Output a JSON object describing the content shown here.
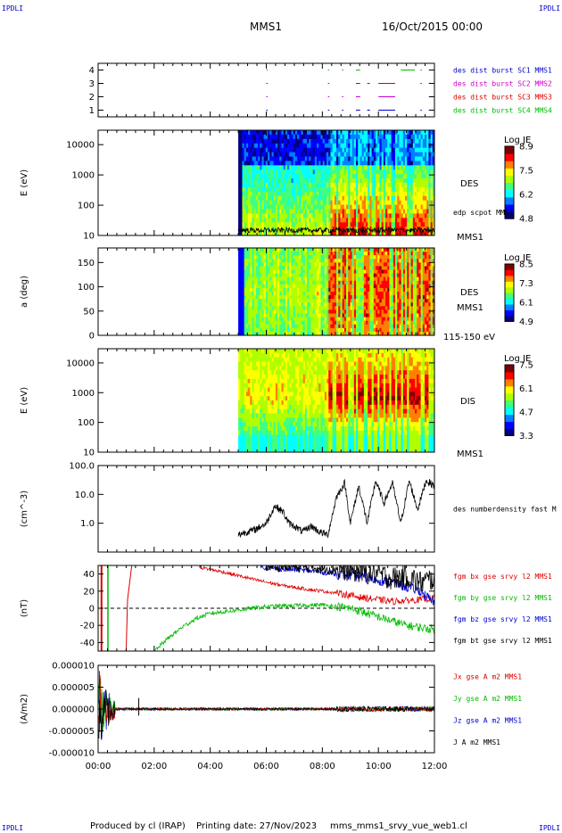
{
  "header": {
    "corner_tl": "IPDLI",
    "corner_tr": "IPDLI",
    "corner_bl": "IPDLI",
    "corner_br": "IPDLI",
    "title": "MMS1",
    "date": "16/Oct/2015 00:00"
  },
  "footer": {
    "produced": "Produced by cl (IRAP)",
    "printing": "Printing date: 27/Nov/2023",
    "file": "mms_mms1_srvy_vue_web1.cl"
  },
  "colors": {
    "blue": "#0000cc",
    "magenta": "#cc00cc",
    "red": "#dd0000",
    "green": "#00bb00",
    "black": "#000000"
  },
  "colormap": [
    "#00007f",
    "#0000ff",
    "#0080ff",
    "#00ffff",
    "#40ff80",
    "#b0ff00",
    "#ffff00",
    "#ff8000",
    "#ff0000",
    "#7f0000"
  ],
  "time_axis": {
    "ticks": [
      "00:00",
      "02:00",
      "04:00",
      "06:00",
      "08:00",
      "10:00",
      "12:00"
    ],
    "hours": [
      0,
      2,
      4,
      6,
      8,
      10,
      12
    ],
    "range_hours": [
      0,
      12
    ]
  },
  "chart_data": [
    {
      "type": "scatter",
      "name": "burst",
      "ylim": [
        0.5,
        4.5
      ],
      "yticks": [
        "4",
        "3",
        "2",
        "1"
      ],
      "ytick_values": [
        4,
        3,
        2,
        1
      ],
      "legend": [
        {
          "text": "des dist burst SC1 MMS1",
          "color": "#0000cc"
        },
        {
          "text": "des dist burst SC2 MMS2",
          "color": "#cc00cc"
        },
        {
          "text": "des dist burst SC3 MMS3",
          "color": "#dd0000"
        },
        {
          "text": "des dist burst SC4 MMS4",
          "color": "#00bb00"
        }
      ],
      "segments_hours": [
        [
          6.0,
          6.05
        ],
        [
          8.2,
          8.25
        ],
        [
          8.7,
          8.75
        ],
        [
          9.2,
          9.35
        ],
        [
          9.6,
          9.7
        ],
        [
          10.0,
          10.6
        ],
        [
          10.8,
          11.3
        ],
        [
          11.5,
          11.55
        ],
        [
          11.8,
          11.85
        ]
      ],
      "series_rows": [
        1,
        2,
        3,
        4
      ]
    },
    {
      "type": "heatmap",
      "name": "des-energy",
      "ylabel": "E (eV)",
      "yscale": "log",
      "ylim": [
        10,
        30000
      ],
      "yticks": [
        "10000",
        "1000",
        "100",
        "10"
      ],
      "ytick_values": [
        10000,
        1000,
        100,
        10
      ],
      "data_start_hour": 5.0,
      "right_label": "DES",
      "right_label2": "MMS1",
      "overlay_label": "edp scpot MMS1",
      "colorbar": {
        "title": "Log JE",
        "min": 4.8,
        "max": 8.9,
        "ticks": [
          "8.9",
          "7.5",
          "6.2",
          "4.8"
        ]
      }
    },
    {
      "type": "heatmap",
      "name": "des-pitch",
      "ylabel": "a (deg)",
      "ylim": [
        0,
        180
      ],
      "yticks": [
        "150",
        "100",
        "50",
        "0"
      ],
      "ytick_values": [
        150,
        100,
        50,
        0
      ],
      "data_start_hour": 5.0,
      "right_label": "DES",
      "right_label2": "MMS1",
      "right_label3": "115-150 eV",
      "colorbar": {
        "title": "Log JE",
        "min": 4.9,
        "max": 8.5,
        "ticks": [
          "8.5",
          "7.3",
          "6.1",
          "4.9"
        ]
      }
    },
    {
      "type": "heatmap",
      "name": "dis-energy",
      "ylabel": "E (eV)",
      "yscale": "log",
      "ylim": [
        10,
        30000
      ],
      "yticks": [
        "10000",
        "1000",
        "100",
        "10"
      ],
      "ytick_values": [
        10000,
        1000,
        100,
        10
      ],
      "data_start_hour": 5.0,
      "right_label": "DIS",
      "right_label2": "MMS1",
      "colorbar": {
        "title": "Log JE",
        "min": 3.3,
        "max": 7.5,
        "ticks": [
          "7.5",
          "6.1",
          "4.7",
          "3.3"
        ]
      }
    },
    {
      "type": "line",
      "name": "density",
      "ylabel": "(cm^-3)",
      "yscale": "log",
      "ylim": [
        0.1,
        100
      ],
      "yticks": [
        "100.0",
        "10.0",
        "1.0"
      ],
      "ytick_values": [
        100,
        10,
        1
      ],
      "legend": [
        {
          "text": "des numberdensity fast M",
          "color": "#000000"
        }
      ],
      "series": [
        {
          "x": [
            5.0,
            5.3,
            5.6,
            6.0,
            6.3,
            6.6,
            6.8,
            7.0,
            7.3,
            7.6,
            7.9,
            8.2,
            8.5,
            8.8,
            9.0,
            9.3,
            9.6,
            9.9,
            10.2,
            10.5,
            10.8,
            11.1,
            11.4,
            11.7,
            12.0
          ],
          "y": [
            0.4,
            0.5,
            0.6,
            1.0,
            4.0,
            2.5,
            1.0,
            0.8,
            0.5,
            0.8,
            0.5,
            0.4,
            8.0,
            25.0,
            1.0,
            20.0,
            1.0,
            30.0,
            5.0,
            25.0,
            1.0,
            30.0,
            3.0,
            30.0,
            20.0
          ]
        }
      ]
    },
    {
      "type": "line",
      "name": "magnetic-field",
      "ylabel": "(nT)",
      "ylim": [
        -50,
        50
      ],
      "yticks": [
        "40",
        "20",
        "0",
        "-20",
        "-40"
      ],
      "ytick_values": [
        40,
        20,
        0,
        -20,
        -40
      ],
      "zero_line": true,
      "legend": [
        {
          "text": "fgm bx gse srvy l2 MMS1",
          "color": "#dd0000"
        },
        {
          "text": "fgm by gse srvy l2 MMS1",
          "color": "#00bb00"
        },
        {
          "text": "fgm bz gse srvy l2 MMS1",
          "color": "#0000cc"
        },
        {
          "text": "fgm bt gse srvy l2 MMS1",
          "color": "#000000"
        }
      ],
      "series": [
        {
          "key": "bx",
          "x": [
            3.6,
            4.5,
            5.5,
            6.5,
            7.5,
            8.5,
            9.5,
            10.5,
            11.5,
            12.0
          ],
          "y": [
            48,
            42,
            34,
            27,
            22,
            18,
            12,
            8,
            10,
            12
          ]
        },
        {
          "key": "by",
          "x": [
            2.0,
            2.5,
            3.0,
            3.5,
            4.0,
            5.0,
            6.0,
            7.0,
            8.0,
            9.0,
            10.0,
            11.0,
            12.0
          ],
          "y": [
            -50,
            -35,
            -22,
            -12,
            -6,
            -2,
            2,
            3,
            4,
            0,
            -10,
            -20,
            -25
          ]
        },
        {
          "key": "bz",
          "x": [
            5.8,
            6.5,
            7.5,
            8.5,
            9.5,
            10.5,
            11.5,
            12.0
          ],
          "y": [
            48,
            46,
            44,
            40,
            36,
            30,
            20,
            5
          ]
        },
        {
          "key": "bt",
          "x": [
            6.0,
            7.0,
            8.0,
            9.0,
            9.5,
            10.0,
            10.5,
            11.0,
            11.5,
            12.0
          ],
          "y": [
            50,
            49,
            47,
            45,
            42,
            40,
            35,
            38,
            30,
            35
          ]
        }
      ]
    },
    {
      "type": "line",
      "name": "current-density",
      "ylabel": "(A/m2)",
      "ylim": [
        -1e-05,
        1e-05
      ],
      "yticks": [
        "0.000010",
        "0.000005",
        "0.000000",
        "-0.000005",
        "-0.000010"
      ],
      "ytick_values": [
        1e-05,
        5e-06,
        0,
        -5e-06,
        -1e-05
      ],
      "legend": [
        {
          "text": "Jx gse A m2 MMS1",
          "color": "#dd0000"
        },
        {
          "text": "Jy gse A m2 MMS1",
          "color": "#00bb00"
        },
        {
          "text": "Jz gse A m2 MMS1",
          "color": "#0000cc"
        },
        {
          "text": "J A m2 MMS1",
          "color": "#000000"
        }
      ]
    }
  ]
}
